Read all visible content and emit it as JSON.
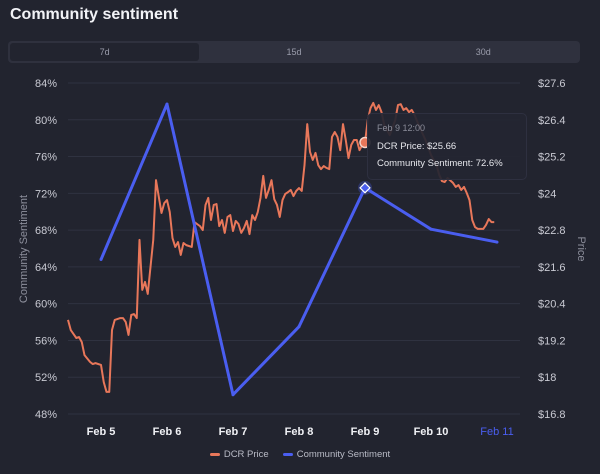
{
  "title": "Community sentiment",
  "tabs": [
    {
      "label": "7d",
      "active": true
    },
    {
      "label": "15d",
      "active": false
    },
    {
      "label": "30d",
      "active": false
    }
  ],
  "colors": {
    "price": "#e8775a",
    "sentiment": "#4a5ef0",
    "highlight_tick": "#4a5ef0",
    "grid": "#2f3240"
  },
  "tooltip": {
    "time": "Feb 9 12:00",
    "price_text": "DCR Price: $25.66",
    "sentiment_text": "Community Sentiment: 72.6%"
  },
  "legend": [
    {
      "label": "DCR Price",
      "series": "price"
    },
    {
      "label": "Community Sentiment",
      "series": "sentiment"
    }
  ],
  "chart_data": {
    "type": "line",
    "x_ticks": [
      "Feb 5",
      "Feb 6",
      "Feb 7",
      "Feb 8",
      "Feb 9",
      "Feb 10",
      "Feb 11"
    ],
    "highlighted_x_tick": "Feb 11",
    "y_left": {
      "label": "Community Sentiment",
      "ticks": [
        "84%",
        "80%",
        "76%",
        "72%",
        "68%",
        "64%",
        "60%",
        "56%",
        "52%",
        "48%"
      ],
      "range": [
        48,
        84
      ]
    },
    "y_right": {
      "label": "Price",
      "ticks": [
        "$27.6",
        "$26.4",
        "$25.2",
        "$24",
        "$22.8",
        "$21.6",
        "$20.4",
        "$19.2",
        "$18",
        "$16.8"
      ],
      "range": [
        16.8,
        27.6
      ]
    },
    "grid": true,
    "legend_position": "bottom",
    "series": [
      {
        "name": "Community Sentiment",
        "axis": "left",
        "points": [
          [
            "Feb 5 12:00",
            64.8
          ],
          [
            "Feb 6 12:00",
            81.7
          ],
          [
            "Feb 7 12:00",
            50.1
          ],
          [
            "Feb 8 12:00",
            57.5
          ],
          [
            "Feb 9 12:00",
            72.6
          ],
          [
            "Feb 10 12:00",
            68.1
          ],
          [
            "Feb 11 12:00",
            66.7
          ]
        ]
      },
      {
        "name": "DCR Price",
        "axis": "right",
        "points": [
          [
            "Feb 5 00:00",
            19.87
          ],
          [
            "Feb 5 01:00",
            19.54
          ],
          [
            "Feb 5 03:00",
            19.28
          ],
          [
            "Feb 5 04:00",
            19.31
          ],
          [
            "Feb 5 05:00",
            19.15
          ],
          [
            "Feb 5 06:00",
            18.72
          ],
          [
            "Feb 5 08:00",
            18.5
          ],
          [
            "Feb 5 09:00",
            18.43
          ],
          [
            "Feb 5 10:00",
            18.46
          ],
          [
            "Feb 5 12:00",
            18.4
          ],
          [
            "Feb 5 13:00",
            17.84
          ],
          [
            "Feb 5 14:00",
            17.52
          ],
          [
            "Feb 5 15:00",
            17.52
          ],
          [
            "Feb 5 16:00",
            19.54
          ],
          [
            "Feb 5 17:00",
            19.87
          ],
          [
            "Feb 5 19:00",
            19.93
          ],
          [
            "Feb 5 20:00",
            19.93
          ],
          [
            "Feb 5 21:00",
            19.8
          ],
          [
            "Feb 5 22:00",
            19.38
          ],
          [
            "Feb 5 23:00",
            20.03
          ],
          [
            "Feb 6 00:00",
            20.06
          ],
          [
            "Feb 6 01:00",
            19.93
          ],
          [
            "Feb 6 02:00",
            22.48
          ],
          [
            "Feb 6 03:00",
            20.85
          ],
          [
            "Feb 6 04:00",
            21.11
          ],
          [
            "Feb 6 05:00",
            20.72
          ],
          [
            "Feb 6 07:00",
            22.48
          ],
          [
            "Feb 6 08:00",
            24.43
          ],
          [
            "Feb 6 10:00",
            23.36
          ],
          [
            "Feb 6 11:00",
            23.68
          ],
          [
            "Feb 6 12:00",
            23.78
          ],
          [
            "Feb 6 13:00",
            23.39
          ],
          [
            "Feb 6 14:00",
            22.54
          ],
          [
            "Feb 6 15:00",
            22.25
          ],
          [
            "Feb 6 16:00",
            22.41
          ],
          [
            "Feb 6 17:00",
            21.99
          ],
          [
            "Feb 6 18:00",
            22.38
          ],
          [
            "Feb 6 19:00",
            22.31
          ],
          [
            "Feb 6 21:00",
            22.25
          ],
          [
            "Feb 6 22:00",
            23.06
          ],
          [
            "Feb 7 00:00",
            22.93
          ],
          [
            "Feb 7 01:00",
            22.8
          ],
          [
            "Feb 7 02:00",
            23.62
          ],
          [
            "Feb 7 03:00",
            23.85
          ],
          [
            "Feb 7 04:00",
            23.13
          ],
          [
            "Feb 7 05:00",
            23.62
          ],
          [
            "Feb 7 06:00",
            23.65
          ],
          [
            "Feb 7 07:00",
            22.93
          ],
          [
            "Feb 7 08:00",
            23.13
          ],
          [
            "Feb 7 09:00",
            22.71
          ],
          [
            "Feb 7 10:00",
            23.23
          ],
          [
            "Feb 7 11:00",
            23.29
          ],
          [
            "Feb 7 12:00",
            22.77
          ],
          [
            "Feb 7 13:00",
            23.1
          ],
          [
            "Feb 7 14:00",
            23.0
          ],
          [
            "Feb 7 15:00",
            22.71
          ],
          [
            "Feb 7 16:00",
            22.87
          ],
          [
            "Feb 7 17:00",
            23.1
          ],
          [
            "Feb 7 18:00",
            22.67
          ],
          [
            "Feb 7 19:00",
            23.29
          ],
          [
            "Feb 7 20:00",
            23.13
          ],
          [
            "Feb 7 21:00",
            23.39
          ],
          [
            "Feb 7 22:00",
            23.85
          ],
          [
            "Feb 7 23:00",
            24.57
          ],
          [
            "Feb 8 00:00",
            23.85
          ],
          [
            "Feb 8 01:00",
            24.11
          ],
          [
            "Feb 8 02:00",
            24.43
          ],
          [
            "Feb 8 03:00",
            23.81
          ],
          [
            "Feb 8 04:00",
            23.62
          ],
          [
            "Feb 8 05:00",
            23.23
          ],
          [
            "Feb 8 06:00",
            23.78
          ],
          [
            "Feb 8 07:00",
            23.98
          ],
          [
            "Feb 8 08:00",
            24.04
          ],
          [
            "Feb 8 09:00",
            24.11
          ],
          [
            "Feb 8 10:00",
            23.91
          ],
          [
            "Feb 8 11:00",
            24.08
          ],
          [
            "Feb 8 12:00",
            24.17
          ],
          [
            "Feb 8 13:00",
            24.08
          ],
          [
            "Feb 8 14:00",
            24.92
          ],
          [
            "Feb 8 15:00",
            26.26
          ],
          [
            "Feb 8 16:00",
            25.35
          ],
          [
            "Feb 8 17:00",
            25.09
          ],
          [
            "Feb 8 18:00",
            25.32
          ],
          [
            "Feb 8 19:00",
            24.92
          ],
          [
            "Feb 8 20:00",
            24.79
          ],
          [
            "Feb 8 21:00",
            24.89
          ],
          [
            "Feb 8 22:00",
            24.83
          ],
          [
            "Feb 8 23:00",
            24.79
          ],
          [
            "Feb 9 00:00",
            25.84
          ],
          [
            "Feb 9 01:00",
            26.0
          ],
          [
            "Feb 9 02:00",
            25.84
          ],
          [
            "Feb 9 03:00",
            25.41
          ],
          [
            "Feb 9 04:00",
            26.26
          ],
          [
            "Feb 9 05:00",
            25.74
          ],
          [
            "Feb 9 06:00",
            25.15
          ],
          [
            "Feb 9 07:00",
            25.58
          ],
          [
            "Feb 9 08:00",
            25.74
          ],
          [
            "Feb 9 09:00",
            25.74
          ],
          [
            "Feb 9 10:00",
            25.41
          ],
          [
            "Feb 9 11:00",
            25.58
          ],
          [
            "Feb 9 12:00",
            25.66
          ],
          [
            "Feb 9 13:00",
            26.39
          ],
          [
            "Feb 9 14:00",
            26.78
          ],
          [
            "Feb 9 15:00",
            26.95
          ],
          [
            "Feb 9 16:00",
            26.72
          ],
          [
            "Feb 9 17:00",
            26.88
          ],
          [
            "Feb 9 18:00",
            26.65
          ],
          [
            "Feb 9 19:00",
            26.23
          ],
          [
            "Feb 9 21:00",
            25.9
          ],
          [
            "Feb 9 23:00",
            26.39
          ],
          [
            "Feb 10 00:00",
            26.88
          ],
          [
            "Feb 10 01:00",
            26.91
          ],
          [
            "Feb 10 02:00",
            26.72
          ],
          [
            "Feb 10 03:00",
            26.78
          ],
          [
            "Feb 10 04:00",
            26.65
          ],
          [
            "Feb 10 05:00",
            26.72
          ],
          [
            "Feb 10 06:00",
            26.56
          ],
          [
            "Feb 10 08:00",
            26.13
          ],
          [
            "Feb 10 10:00",
            25.74
          ],
          [
            "Feb 10 12:00",
            25.25
          ],
          [
            "Feb 10 14:00",
            24.92
          ],
          [
            "Feb 10 15:00",
            24.6
          ],
          [
            "Feb 10 16:00",
            24.4
          ],
          [
            "Feb 10 17:00",
            24.37
          ],
          [
            "Feb 10 18:00",
            24.5
          ],
          [
            "Feb 10 20:00",
            24.34
          ],
          [
            "Feb 10 21:00",
            24.21
          ],
          [
            "Feb 10 22:00",
            24.27
          ],
          [
            "Feb 10 23:00",
            24.11
          ],
          [
            "Feb 11 00:00",
            24.21
          ],
          [
            "Feb 11 01:00",
            24.01
          ],
          [
            "Feb 11 02:00",
            23.78
          ],
          [
            "Feb 11 03:00",
            23.13
          ],
          [
            "Feb 11 04:00",
            22.9
          ],
          [
            "Feb 11 05:00",
            22.84
          ],
          [
            "Feb 11 07:00",
            22.84
          ],
          [
            "Feb 11 08:00",
            22.97
          ],
          [
            "Feb 11 09:00",
            23.16
          ],
          [
            "Feb 11 10:00",
            23.06
          ],
          [
            "Feb 11 11:00",
            23.06
          ]
        ]
      }
    ],
    "hover": {
      "time": "Feb 9 12:00",
      "price": 25.66,
      "sentiment": 72.6
    }
  }
}
